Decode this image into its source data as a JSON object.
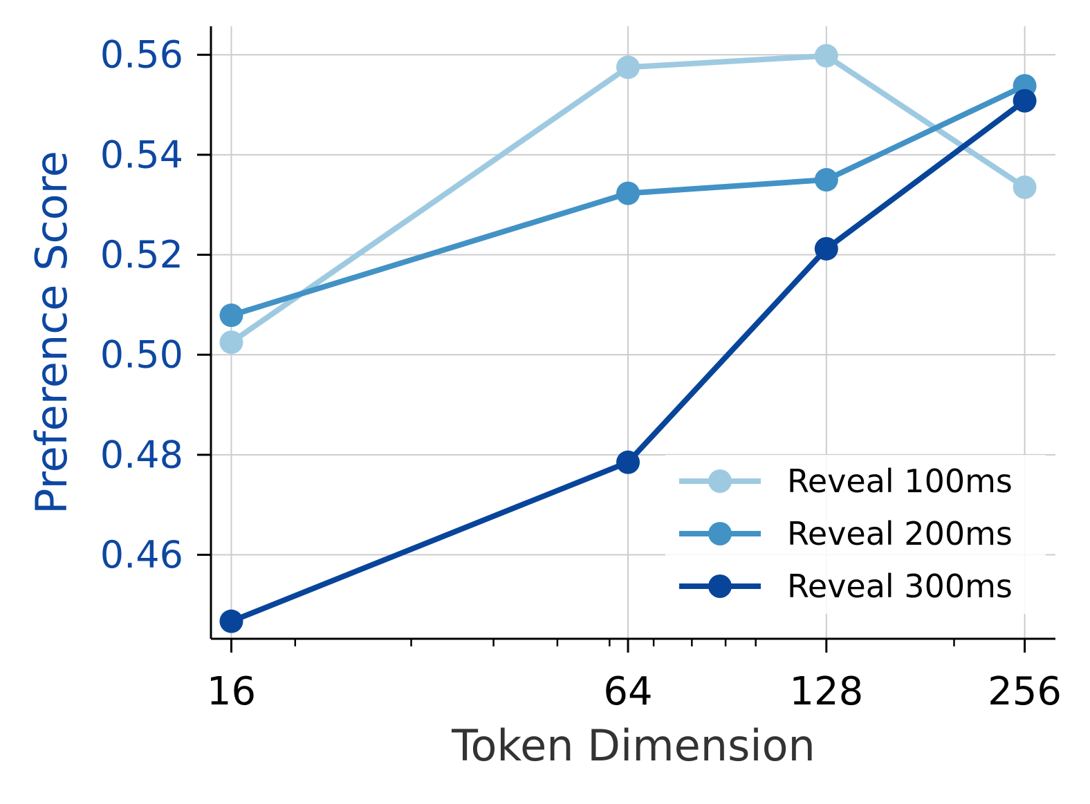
{
  "chart_data": {
    "type": "line",
    "xlabel": "Token Dimension",
    "ylabel": "Preference Score",
    "x_scale": "log2",
    "x": [
      16,
      64,
      128,
      256
    ],
    "x_tick_labels": [
      "16",
      "64",
      "128",
      "256"
    ],
    "xlim": [
      14.9,
      285
    ],
    "ylim": [
      0.4432,
      0.5657
    ],
    "y_ticks": [
      0.46,
      0.48,
      0.5,
      0.52,
      0.54,
      0.56
    ],
    "y_tick_labels": [
      "0.46",
      "0.48",
      "0.50",
      "0.52",
      "0.54",
      "0.56"
    ],
    "grid": true,
    "legend_position": "lower right",
    "series": [
      {
        "name": "Reveal 100ms",
        "color": "#9ecae1",
        "values": [
          0.5025,
          0.5575,
          0.5598,
          0.5335
        ]
      },
      {
        "name": "Reveal 200ms",
        "color": "#4292c6",
        "values": [
          0.5079,
          0.5323,
          0.535,
          0.5538
        ]
      },
      {
        "name": "Reveal 300ms",
        "color": "#08459a",
        "values": [
          0.4467,
          0.4785,
          0.5212,
          0.5508
        ]
      }
    ],
    "colors": {
      "y_axis_label": "#0d47a1",
      "x_axis_label": "#333333",
      "grid": "#cccccc",
      "axis": "#000000"
    }
  }
}
